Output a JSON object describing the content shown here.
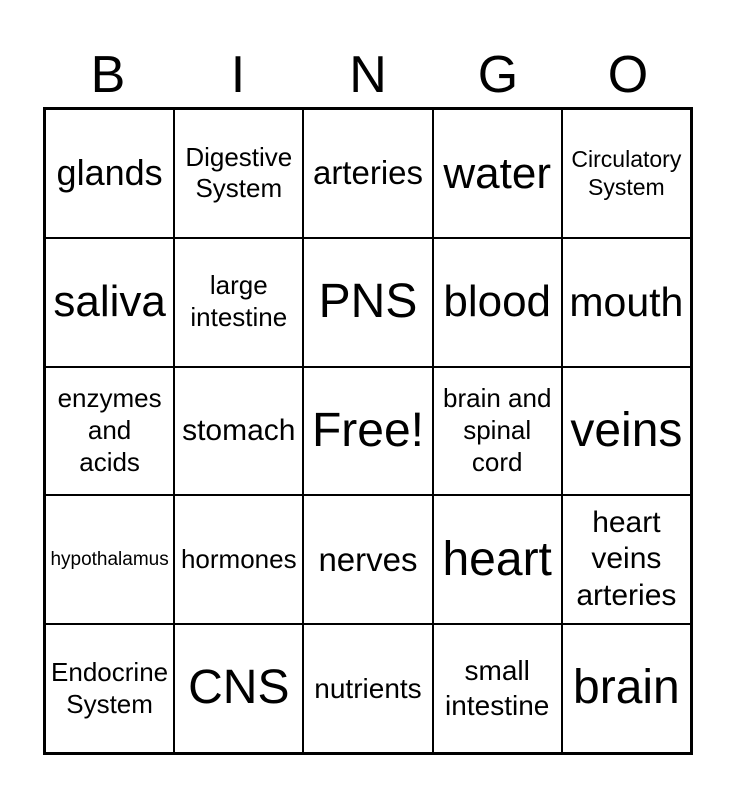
{
  "page": {
    "background_color": "#ffffff",
    "text_color": "#000000",
    "border_color": "#000000"
  },
  "title": {
    "letters": [
      "B",
      "I",
      "N",
      "G",
      "O"
    ]
  },
  "grid": {
    "rows": [
      {
        "cells": [
          {
            "text": "glands"
          },
          {
            "text": "Digestive\nSystem"
          },
          {
            "text": "arteries"
          },
          {
            "text": "water"
          },
          {
            "text": "Circulatory\nSystem"
          }
        ]
      },
      {
        "cells": [
          {
            "text": "saliva"
          },
          {
            "text": "large\nintestine"
          },
          {
            "text": "PNS"
          },
          {
            "text": "blood"
          },
          {
            "text": "mouth"
          }
        ]
      },
      {
        "cells": [
          {
            "text": "enzymes\nand\nacids"
          },
          {
            "text": "stomach"
          },
          {
            "text": "Free!"
          },
          {
            "text": "brain and\nspinal\ncord"
          },
          {
            "text": "veins"
          }
        ]
      },
      {
        "cells": [
          {
            "text": "hypothalamus"
          },
          {
            "text": "hormones"
          },
          {
            "text": "nerves"
          },
          {
            "text": "heart"
          },
          {
            "text": "heart\nveins\narteries"
          }
        ]
      },
      {
        "cells": [
          {
            "text": "Endocrine\nSystem"
          },
          {
            "text": "CNS"
          },
          {
            "text": "nutrients"
          },
          {
            "text": "small\nintestine"
          },
          {
            "text": "brain"
          }
        ]
      }
    ]
  }
}
